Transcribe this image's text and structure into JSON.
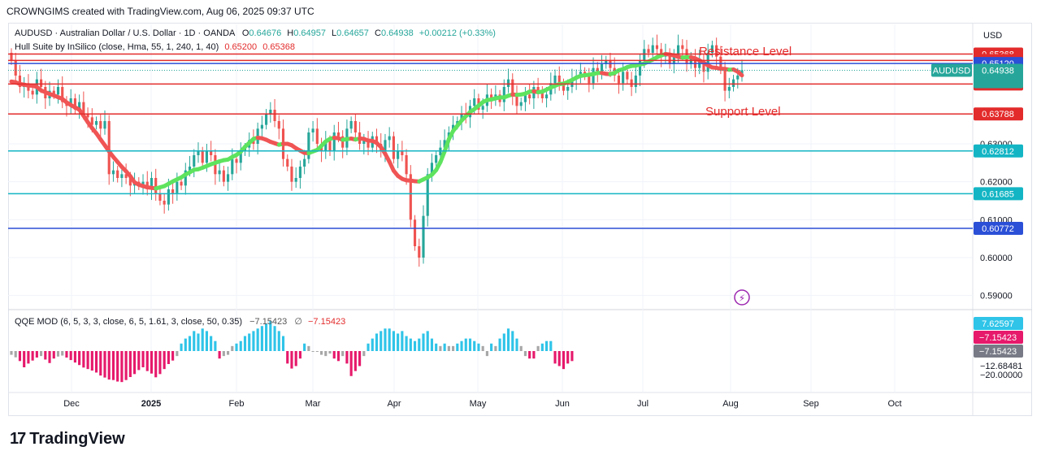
{
  "header": {
    "text": "CROWNGIMS created with TradingView.com, Aug 06, 2025 09:37 UTC"
  },
  "legend": {
    "symbol": "AUDUSD · Australian Dollar / U.S. Dollar · 1D · OANDA",
    "o_label": "O",
    "o": "0.64676",
    "h_label": "H",
    "h": "0.64957",
    "l_label": "L",
    "l": "0.64657",
    "c_label": "C",
    "c": "0.64938",
    "change": "+0.00212 (+0.33%)",
    "hull_name": "Hull Suite by InSilico (close, Hma, 55, 1, 240, 1, 40)",
    "hull_v1": "0.65200",
    "hull_v2": "0.65368",
    "qqe_name": "QQE MOD (6, 5, 3, 3, close, 6, 5, 1.61, 3, close, 50, 0.35)",
    "qqe_v1": "−7.15423",
    "qqe_sym": "∅",
    "qqe_v2": "−7.15423"
  },
  "currency": "USD",
  "annotations": {
    "resistance": "Resistance Level",
    "support": "Support Level"
  },
  "watermark": {
    "name": "TradingView",
    "icon": "tradingview-logo-icon"
  },
  "colors": {
    "up": "#26a69a",
    "down": "#ef5350",
    "hull_up": "#5ee35e",
    "hull_down": "#f05454",
    "red_line": "#e32b2b",
    "blue_line": "#2b4fd6",
    "cyan_line": "#13b5c4",
    "qqe_up": "#2fc4e8",
    "qqe_down": "#e6196b",
    "qqe_neutral": "#a7a7a7"
  },
  "chart_data": [
    {
      "type": "candlestick",
      "symbol": "AUDUSD",
      "timeframe": "1D",
      "x_tick_labels": [
        "Dec",
        "2025",
        "Feb",
        "Mar",
        "Apr",
        "May",
        "Jun",
        "Jul",
        "Aug",
        "Sep",
        "Oct"
      ],
      "y_tick_labels": [
        "0.59000",
        "0.60000",
        "0.61000",
        "0.62000",
        "0.63000"
      ],
      "ylim": [
        0.5865,
        0.6615
      ],
      "closes": [
        0.652,
        0.648,
        0.645,
        0.646,
        0.644,
        0.643,
        0.647,
        0.645,
        0.642,
        0.644,
        0.643,
        0.645,
        0.641,
        0.64,
        0.642,
        0.639,
        0.641,
        0.638,
        0.637,
        0.635,
        0.636,
        0.634,
        0.636,
        0.622,
        0.623,
        0.621,
        0.622,
        0.621,
        0.619,
        0.62,
        0.619,
        0.62,
        0.618,
        0.621,
        0.617,
        0.615,
        0.614,
        0.618,
        0.617,
        0.62,
        0.619,
        0.623,
        0.624,
        0.627,
        0.628,
        0.625,
        0.628,
        0.627,
        0.622,
        0.623,
        0.62,
        0.622,
        0.626,
        0.625,
        0.628,
        0.629,
        0.631,
        0.63,
        0.634,
        0.635,
        0.638,
        0.639,
        0.636,
        0.634,
        0.626,
        0.624,
        0.62,
        0.621,
        0.624,
        0.626,
        0.633,
        0.634,
        0.63,
        0.628,
        0.631,
        0.628,
        0.633,
        0.632,
        0.629,
        0.634,
        0.636,
        0.633,
        0.63,
        0.631,
        0.629,
        0.632,
        0.63,
        0.628,
        0.631,
        0.632,
        0.626,
        0.628,
        0.627,
        0.622,
        0.61,
        0.603,
        0.6,
        0.611,
        0.622,
        0.625,
        0.627,
        0.629,
        0.631,
        0.633,
        0.635,
        0.636,
        0.638,
        0.637,
        0.64,
        0.642,
        0.639,
        0.64,
        0.643,
        0.642,
        0.643,
        0.641,
        0.645,
        0.647,
        0.643,
        0.64,
        0.641,
        0.643,
        0.642,
        0.645,
        0.644,
        0.642,
        0.643,
        0.646,
        0.648,
        0.646,
        0.644,
        0.645,
        0.647,
        0.648,
        0.649,
        0.648,
        0.646,
        0.65,
        0.649,
        0.651,
        0.652,
        0.65,
        0.648,
        0.646,
        0.649,
        0.647,
        0.645,
        0.648,
        0.652,
        0.655,
        0.654,
        0.656,
        0.655,
        0.653,
        0.654,
        0.651,
        0.653,
        0.656,
        0.655,
        0.651,
        0.653,
        0.65,
        0.652,
        0.649,
        0.654,
        0.656,
        0.653,
        0.65,
        0.644,
        0.645,
        0.647,
        0.648,
        0.6494
      ],
      "hull_levels": {
        "red_lines": [
          0.65368,
          0.652,
          0.64577,
          0.63788
        ],
        "blue_line_1": 0.6512,
        "blue_line_2": 0.60772,
        "cyan_lines": [
          0.62812,
          0.61685
        ]
      },
      "annotations": [
        "Resistance Level",
        "Support Level"
      ]
    },
    {
      "type": "bar",
      "name": "QQE MOD",
      "values": [
        -1.5,
        -2.5,
        -4,
        -6.5,
        -5,
        -3.8,
        -2.6,
        -2,
        -3.4,
        -4.8,
        -3,
        -2.2,
        -1.8,
        -2.6,
        -3.6,
        -4.6,
        -5.6,
        -6.6,
        -7.2,
        -7.8,
        -8.6,
        -9.8,
        -10.6,
        -11.4,
        -11.6,
        -12.2,
        -12.4,
        -11.6,
        -10.4,
        -9.2,
        -7.6,
        -6.5,
        -8,
        -9,
        -10.5,
        -9.2,
        -7.2,
        -5.2,
        -3.8,
        -2,
        3,
        5,
        6,
        8,
        7,
        9,
        8,
        6,
        4,
        -3,
        -2,
        -1.5,
        2,
        3,
        4,
        6,
        7,
        8,
        9,
        10,
        11,
        12,
        10,
        8,
        6,
        -5,
        -7,
        -6,
        -3,
        3,
        2,
        0,
        0,
        -1.5,
        -2,
        -1,
        -3,
        -4,
        -2,
        -5,
        -10,
        -8,
        -6,
        -2,
        3,
        5,
        7,
        8,
        9,
        9,
        8,
        7,
        8,
        6,
        5,
        4,
        5,
        7,
        8,
        5,
        3,
        2,
        3,
        2,
        2,
        3,
        4,
        5,
        5,
        4,
        3,
        2,
        -2,
        3,
        2,
        5,
        7,
        9,
        8,
        5,
        2,
        -2,
        -3,
        -3,
        2,
        3,
        4,
        4,
        -5,
        -6,
        -7.2,
        -5,
        -4
      ]
    }
  ]
}
